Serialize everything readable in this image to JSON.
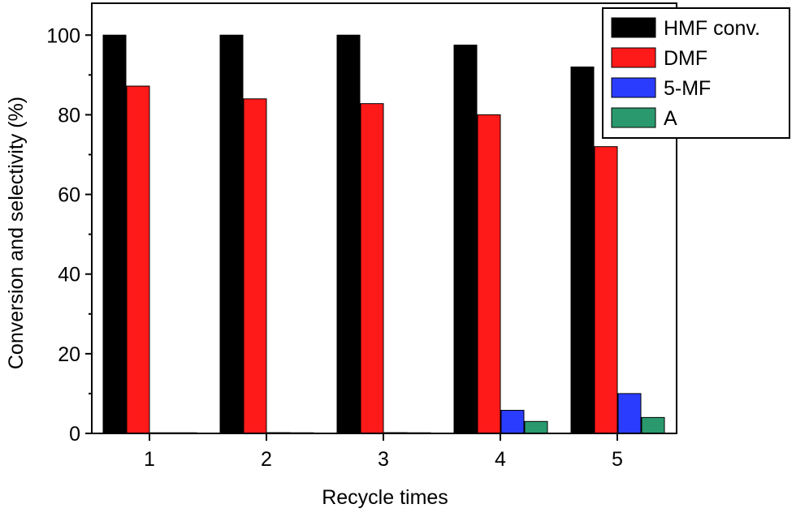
{
  "chart_data": {
    "type": "bar",
    "xlabel": "Recycle times",
    "ylabel": "Conversion and selectivity (%)",
    "categories": [
      "1",
      "2",
      "3",
      "4",
      "5"
    ],
    "ylim": [
      0,
      108
    ],
    "yticks": [
      0,
      20,
      40,
      60,
      80,
      100
    ],
    "grid": false,
    "legend_position": "top-right",
    "series": [
      {
        "name": "HMF conv.",
        "color": "#000000",
        "values": [
          100,
          100,
          100,
          97.5,
          92
        ]
      },
      {
        "name": "DMF",
        "color": "#ff1a1a",
        "values": [
          87.2,
          84,
          82.8,
          80,
          72
        ]
      },
      {
        "name": "5-MF",
        "color": "#2a3dff",
        "values": [
          0,
          0.2,
          0.2,
          5.8,
          10
        ]
      },
      {
        "name": "A",
        "color": "#2a9a6e",
        "values": [
          0,
          0,
          0,
          3,
          4
        ]
      }
    ]
  }
}
